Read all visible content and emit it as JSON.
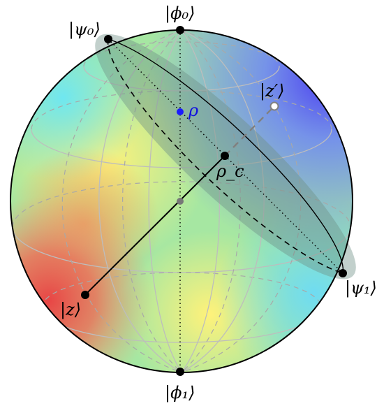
{
  "labels": {
    "phi0": "|ϕ₀⟩",
    "phi1": "|ϕ₁⟩",
    "psi0": "|ψ₀⟩",
    "psi1": "|ψ₁⟩",
    "z": "|z⟩",
    "z_prime": "|z′⟩",
    "rho": "ρ",
    "rho_c": "ρ_c"
  },
  "colors": {
    "rho_point": "#1a1aff",
    "outline": "#000000",
    "disk_fill": "#6d8f86"
  }
}
